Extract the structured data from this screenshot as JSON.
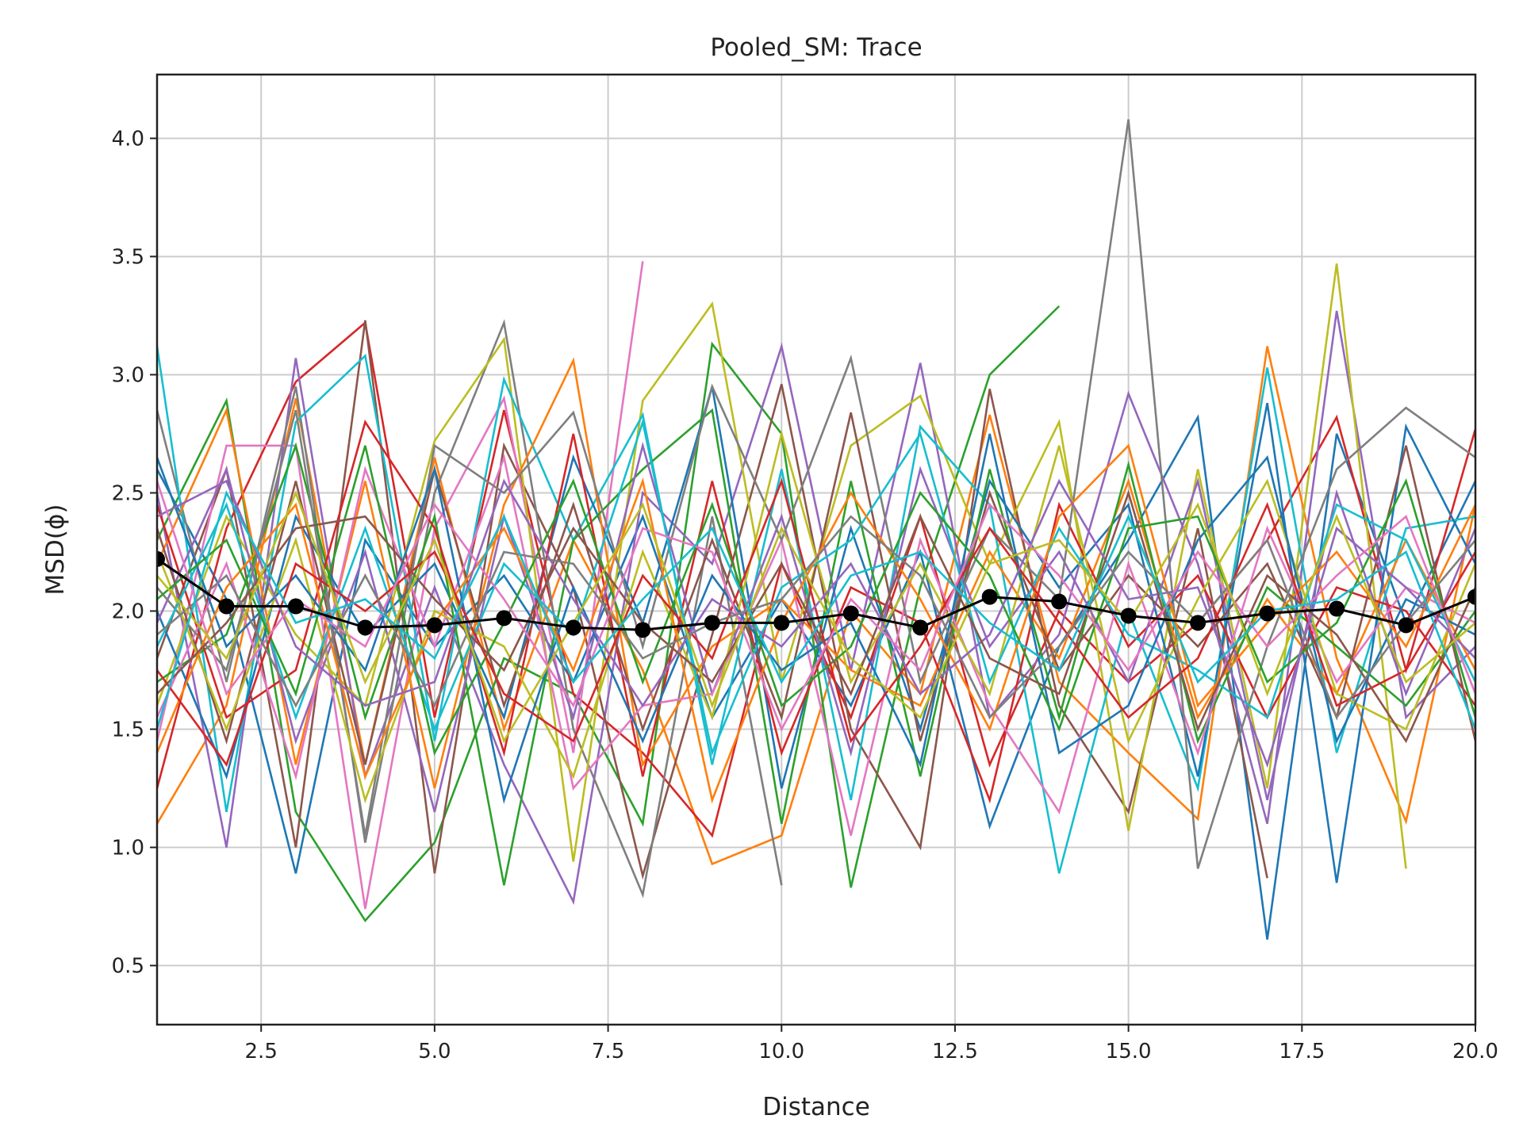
{
  "chart_data": {
    "type": "line",
    "title": "Pooled_SM: Trace",
    "xlabel": "Distance",
    "ylabel": "MSD(ϕ)",
    "xlim": [
      1,
      20
    ],
    "ylim": [
      0.25,
      4.27
    ],
    "grid": true,
    "legend": "none",
    "x_ticks": [
      "2.5",
      "5.0",
      "7.5",
      "10.0",
      "12.5",
      "15.0",
      "17.5",
      "20.0"
    ],
    "y_ticks": [
      "0.5",
      "1.0",
      "1.5",
      "2.0",
      "2.5",
      "3.0",
      "3.5",
      "4.0"
    ],
    "x": [
      1,
      2,
      3,
      4,
      5,
      6,
      7,
      8,
      9,
      10,
      11,
      12,
      13,
      14,
      15,
      16,
      17,
      18,
      19,
      20
    ],
    "palette": [
      "#1f77b4",
      "#ff7f0e",
      "#2ca02c",
      "#d62728",
      "#9467bd",
      "#8c564b",
      "#e377c2",
      "#7f7f7f",
      "#bcbd22",
      "#17becf"
    ],
    "series": [
      {
        "values": [
          2.6,
          2.05,
          0.89,
          2.3,
          1.85,
          2.15,
          1.7,
          2.4,
          1.55,
          2.05,
          1.6,
          2.25,
          1.09,
          1.85,
          2.3,
          2.82,
          0.61,
          2.75,
          1.95,
          2.55
        ]
      },
      {
        "values": [
          1.1,
          1.6,
          2.9,
          1.35,
          2.65,
          1.5,
          2.3,
          1.75,
          0.93,
          1.05,
          2.0,
          1.65,
          2.83,
          1.7,
          1.4,
          1.12,
          3.12,
          1.8,
          1.11,
          2.45
        ]
      },
      {
        "values": [
          2.3,
          2.89,
          1.15,
          0.69,
          1.02,
          1.8,
          1.65,
          1.1,
          3.13,
          2.75,
          0.83,
          2.1,
          3.0,
          3.29,
          null,
          null,
          null,
          null,
          null,
          null
        ]
      },
      {
        "values": [
          1.25,
          2.35,
          2.97,
          3.22,
          1.55,
          2.85,
          1.65,
          1.4,
          1.05,
          2.2,
          1.55,
          2.4,
          1.35,
          2.0,
          1.7,
          1.95,
          2.3,
          2.82,
          1.75,
          2.77
        ]
      },
      {
        "values": [
          2.5,
          1.0,
          3.07,
          1.3,
          2.1,
          1.35,
          0.77,
          2.5,
          2.2,
          3.12,
          1.75,
          3.05,
          1.55,
          1.9,
          2.92,
          2.2,
          1.1,
          3.27,
          1.55,
          1.85
        ]
      },
      {
        "values": [
          1.8,
          2.6,
          1.0,
          3.23,
          0.89,
          2.7,
          2.1,
          0.88,
          1.9,
          2.96,
          1.5,
          1.0,
          2.94,
          1.6,
          1.15,
          2.35,
          0.87,
          null,
          null,
          null
        ]
      },
      {
        "values": [
          1.45,
          2.7,
          2.7,
          0.74,
          2.35,
          2.9,
          1.4,
          3.48,
          null,
          null,
          null,
          null,
          null,
          null,
          null,
          null,
          null,
          null,
          null,
          null
        ]
      },
      {
        "values": [
          2.85,
          1.7,
          2.95,
          1.02,
          2.5,
          3.22,
          1.5,
          0.8,
          2.4,
          0.84,
          null,
          null,
          null,
          null,
          null,
          null,
          null,
          null,
          null,
          null
        ]
      },
      {
        "values": [
          1.6,
          2.4,
          1.9,
          1.6,
          2.72,
          3.15,
          0.94,
          2.89,
          3.3,
          1.7,
          2.7,
          2.91,
          2.2,
          2.8,
          1.07,
          2.6,
          1.25,
          3.47,
          0.91,
          null
        ]
      },
      {
        "values": [
          3.12,
          1.15,
          2.8,
          3.08,
          1.45,
          2.98,
          2.3,
          2.83,
          1.35,
          2.6,
          1.2,
          2.78,
          2.45,
          0.89,
          2.0,
          1.25,
          3.03,
          1.4,
          2.35,
          2.4
        ]
      },
      {
        "values": [
          2.0,
          1.3,
          2.4,
          1.9,
          2.2,
          1.55,
          2.65,
          1.95,
          2.95,
          1.25,
          2.35,
          1.5,
          2.55,
          2.1,
          2.45,
          1.3,
          2.88,
          0.85,
          2.78,
          2.2
        ]
      },
      {
        "values": [
          2.2,
          2.85,
          1.35,
          2.55,
          1.25,
          2.45,
          3.06,
          1.35,
          1.85,
          2.05,
          1.75,
          1.6,
          2.25,
          1.8,
          2.55,
          1.55,
          2.05,
          1.65,
          2.3,
          1.75
        ]
      },
      {
        "values": [
          1.7,
          1.9,
          2.7,
          1.55,
          2.4,
          0.84,
          2.3,
          2.6,
          2.85,
          1.1,
          2.55,
          1.3,
          2.6,
          1.55,
          2.62,
          1.45,
          2.1,
          1.85,
          1.6,
          2.0
        ]
      },
      {
        "values": [
          2.45,
          1.55,
          1.75,
          2.8,
          2.35,
          1.4,
          2.75,
          1.3,
          2.55,
          1.4,
          2.1,
          1.95,
          1.2,
          2.45,
          1.85,
          2.15,
          1.55,
          2.1,
          2.0,
          1.6
        ]
      },
      {
        "values": [
          1.95,
          2.6,
          1.45,
          2.25,
          1.15,
          2.4,
          1.55,
          2.7,
          1.65,
          2.4,
          1.4,
          2.6,
          1.85,
          2.25,
          1.7,
          2.55,
          1.2,
          2.5,
          1.65,
          2.35
        ]
      },
      {
        "values": [
          2.35,
          1.45,
          2.55,
          1.35,
          2.6,
          1.6,
          2.45,
          1.5,
          2.3,
          1.55,
          2.84,
          1.45,
          2.5,
          1.75,
          2.15,
          1.85,
          2.2,
          1.55,
          2.7,
          1.45
        ]
      },
      {
        "values": [
          1.55,
          2.2,
          1.3,
          2.6,
          1.85,
          2.65,
          1.25,
          1.6,
          1.65,
          2.3,
          1.05,
          2.3,
          1.6,
          1.15,
          2.2,
          1.4,
          2.35,
          1.7,
          2.1,
          1.95
        ]
      },
      {
        "values": [
          2.1,
          1.75,
          2.85,
          1.05,
          2.7,
          2.5,
          2.84,
          1.85,
          2.95,
          2.3,
          3.07,
          1.7,
          2.35,
          2.05,
          4.08,
          0.91,
          1.85,
          2.6,
          2.86,
          2.65
        ]
      },
      {
        "values": [
          2.25,
          1.5,
          2.3,
          1.2,
          2.0,
          1.85,
          1.3,
          2.25,
          1.55,
          2.75,
          1.7,
          2.2,
          1.65,
          2.7,
          1.45,
          2.05,
          2.55,
          1.65,
          1.5,
          2.2
        ]
      },
      {
        "values": [
          1.85,
          2.45,
          1.55,
          2.35,
          1.5,
          2.2,
          1.9,
          2.8,
          1.4,
          2.1,
          2.3,
          2.75,
          1.7,
          2.35,
          1.9,
          1.75,
          1.55,
          2.45,
          2.3,
          1.7
        ]
      },
      {
        "values": [
          2.65,
          1.85,
          2.15,
          1.75,
          2.6,
          1.2,
          2.1,
          1.45,
          2.15,
          1.75,
          1.95,
          1.35,
          2.75,
          1.4,
          1.6,
          2.3,
          2.65,
          1.45,
          2.05,
          1.9
        ]
      },
      {
        "values": [
          1.4,
          2.1,
          2.45,
          1.3,
          1.95,
          2.35,
          1.75,
          2.55,
          1.2,
          1.95,
          2.5,
          2.05,
          1.5,
          2.4,
          2.7,
          1.6,
          1.95,
          2.25,
          1.85,
          2.45
        ]
      },
      {
        "values": [
          2.05,
          2.3,
          1.65,
          2.7,
          1.4,
          1.95,
          2.55,
          1.7,
          2.45,
          1.6,
          1.85,
          2.5,
          2.15,
          1.5,
          2.35,
          2.4,
          1.7,
          1.95,
          2.55,
          1.55
        ]
      },
      {
        "values": [
          1.75,
          1.35,
          2.2,
          2.0,
          2.25,
          1.65,
          1.45,
          2.15,
          1.8,
          2.55,
          1.45,
          1.85,
          2.35,
          1.95,
          1.55,
          1.8,
          2.45,
          1.6,
          1.75,
          2.25
        ]
      },
      {
        "values": [
          2.4,
          2.55,
          1.85,
          1.6,
          1.7,
          2.55,
          2.05,
          1.6,
          2.05,
          1.85,
          2.2,
          1.65,
          1.9,
          2.55,
          2.05,
          2.1,
          1.35,
          2.35,
          2.1,
          1.8
        ]
      },
      {
        "values": [
          1.65,
          1.95,
          2.35,
          2.4,
          2.05,
          1.75,
          2.35,
          1.95,
          1.7,
          2.2,
          1.65,
          2.4,
          1.8,
          1.65,
          2.5,
          1.5,
          2.15,
          1.9,
          1.45,
          2.1
        ]
      },
      {
        "values": [
          2.55,
          1.65,
          2.05,
          1.85,
          2.45,
          2.05,
          1.6,
          2.35,
          2.25,
          1.5,
          2.05,
          1.75,
          2.45,
          2.15,
          1.75,
          2.25,
          1.85,
          2.15,
          2.4,
          1.65
        ]
      },
      {
        "values": [
          1.9,
          2.15,
          1.6,
          2.15,
          1.6,
          2.25,
          2.2,
          1.8,
          1.95,
          2.05,
          2.4,
          2.15,
          1.55,
          1.85,
          2.25,
          1.95,
          2.3,
          1.55,
          1.95,
          2.3
        ]
      },
      {
        "values": [
          2.15,
          1.8,
          2.5,
          1.7,
          2.3,
          1.45,
          1.95,
          2.45,
          1.6,
          2.35,
          1.8,
          1.55,
          2.2,
          2.3,
          1.95,
          2.45,
          1.65,
          2.4,
          1.7,
          1.95
        ]
      },
      {
        "values": [
          1.5,
          2.5,
          1.95,
          2.05,
          1.8,
          2.4,
          1.7,
          2.05,
          2.35,
          1.7,
          2.15,
          2.25,
          1.95,
          1.75,
          2.4,
          1.7,
          2.0,
          2.05,
          2.25,
          1.5
        ]
      }
    ],
    "mean_series": {
      "values": [
        2.22,
        2.02,
        2.02,
        1.93,
        1.94,
        1.97,
        1.93,
        1.92,
        1.95,
        1.95,
        1.99,
        1.93,
        2.06,
        2.04,
        1.98,
        1.95,
        1.99,
        2.01,
        1.94,
        2.06
      ],
      "color": "#000000"
    }
  }
}
